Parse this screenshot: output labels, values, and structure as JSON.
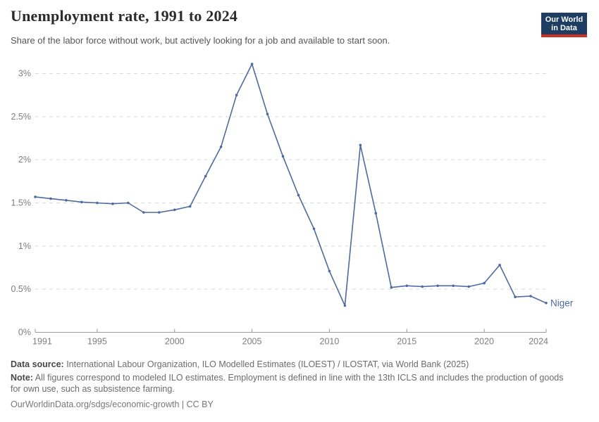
{
  "header": {
    "title": "Unemployment rate, 1991 to 2024",
    "subtitle": "Share of the labor force without work, but actively looking for a job and available to start soon."
  },
  "logo": {
    "line1": "Our World",
    "line2": "in Data",
    "bg_color": "#1d3d63",
    "stripe_color": "#cb3022"
  },
  "chart_data": {
    "type": "line",
    "title": "Unemployment rate, 1991 to 2024",
    "x": [
      1991,
      1992,
      1993,
      1994,
      1995,
      1996,
      1997,
      1998,
      1999,
      2000,
      2001,
      2002,
      2003,
      2004,
      2005,
      2006,
      2007,
      2008,
      2009,
      2010,
      2011,
      2012,
      2013,
      2014,
      2015,
      2016,
      2017,
      2018,
      2019,
      2020,
      2021,
      2022,
      2023,
      2024
    ],
    "series": [
      {
        "name": "Niger",
        "color": "#4C6B9F",
        "values": [
          1.57,
          1.55,
          1.53,
          1.51,
          1.5,
          1.49,
          1.5,
          1.39,
          1.39,
          1.42,
          1.46,
          1.81,
          2.15,
          2.75,
          3.11,
          2.53,
          2.04,
          1.59,
          1.2,
          0.71,
          0.31,
          2.17,
          1.38,
          0.52,
          0.54,
          0.53,
          0.54,
          0.54,
          0.53,
          0.57,
          0.78,
          0.41,
          0.42,
          0.34
        ]
      }
    ],
    "xlabel": "",
    "ylabel": "",
    "xlim": [
      1991,
      2024
    ],
    "ylim": [
      0,
      3.16
    ],
    "xticks": [
      1991,
      1995,
      2000,
      2005,
      2010,
      2015,
      2020,
      2024
    ],
    "yticks": [
      0,
      0.5,
      1,
      1.5,
      2,
      2.5,
      3
    ],
    "ytick_labels": [
      "0%",
      "0.5%",
      "1%",
      "1.5%",
      "2%",
      "2.5%",
      "3%"
    ],
    "grid": "horizontal-dashed",
    "grid_color": "#dadada",
    "axis_color": "#999999",
    "tick_label_color": "#7d7d7d",
    "legend_position": "end-of-line-label"
  },
  "footer": {
    "datasource_label": "Data source:",
    "datasource_text": " International Labour Organization, ILO Modelled Estimates (ILOEST) / ILOSTAT, via World Bank (2025)",
    "note_label": "Note:",
    "note_text": " All figures correspond to modeled ILO estimates. Employment is defined in line with the 13th ICLS and includes the production of goods for own use, such as subsistence farming.",
    "link_text": "OurWorldinData.org/sdgs/economic-growth | CC BY"
  }
}
